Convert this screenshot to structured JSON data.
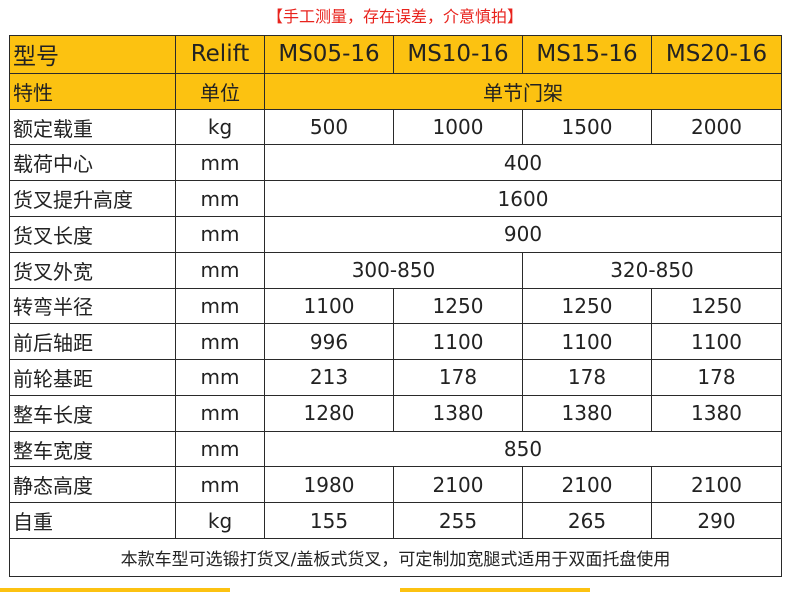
{
  "notice": "【手工测量，存在误差，介意慎拍】",
  "header": {
    "model_label": "型号",
    "brand": "Relift",
    "models": [
      "MS05-16",
      "MS10-16",
      "MS15-16",
      "MS20-16"
    ],
    "feature_label": "特性",
    "unit_label": "单位",
    "mast_type": "单节门架"
  },
  "rows": {
    "rated_load": {
      "label": "额定载重",
      "unit": "kg",
      "values": [
        "500",
        "1000",
        "1500",
        "2000"
      ]
    },
    "load_center": {
      "label": "载荷中心",
      "unit": "mm",
      "value": "400"
    },
    "lift_height": {
      "label": "货叉提升高度",
      "unit": "mm",
      "value": "1600"
    },
    "fork_length": {
      "label": "货叉长度",
      "unit": "mm",
      "value": "900"
    },
    "fork_width": {
      "label": "货叉外宽",
      "unit": "mm",
      "values": [
        "300-850",
        "320-850"
      ]
    },
    "turning_radius": {
      "label": "转弯半径",
      "unit": "mm",
      "values": [
        "1100",
        "1250",
        "1250",
        "1250"
      ]
    },
    "wheelbase": {
      "label": "前后轴距",
      "unit": "mm",
      "values": [
        "996",
        "1100",
        "1100",
        "1100"
      ]
    },
    "front_track": {
      "label": "前轮基距",
      "unit": "mm",
      "values": [
        "213",
        "178",
        "178",
        "178"
      ]
    },
    "overall_length": {
      "label": "整车长度",
      "unit": "mm",
      "values": [
        "1280",
        "1380",
        "1380",
        "1380"
      ]
    },
    "overall_width": {
      "label": "整车宽度",
      "unit": "mm",
      "value": "850"
    },
    "static_height": {
      "label": "静态高度",
      "unit": "mm",
      "values": [
        "1980",
        "2100",
        "2100",
        "2100"
      ]
    },
    "self_weight": {
      "label": "自重",
      "unit": "kg",
      "values": [
        "155",
        "255",
        "265",
        "290"
      ]
    }
  },
  "footer_note": "本款车型可选锻打货叉/盖板式货叉，可定制加宽腿式适用于双面托盘使用",
  "colors": {
    "header_bg": "#fcc211",
    "notice": "#e8231d",
    "border": "#2a2a2a"
  }
}
